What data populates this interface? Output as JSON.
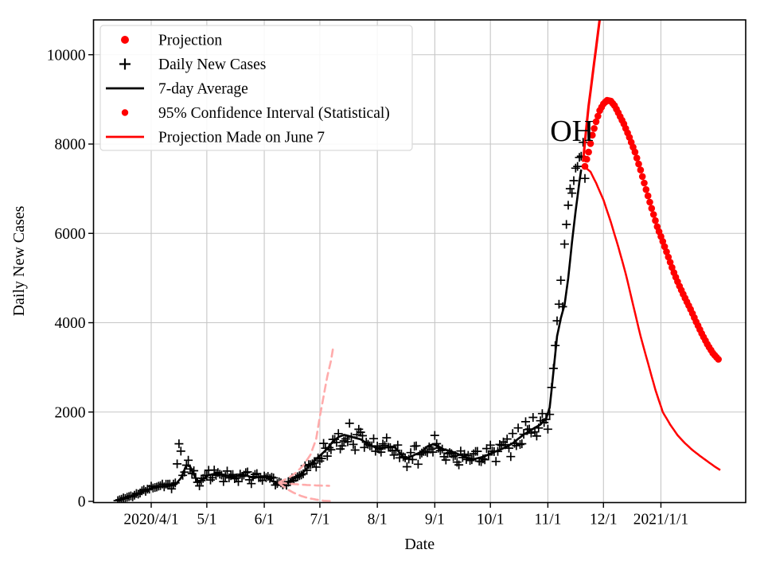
{
  "figure": {
    "background": "#ffffff"
  },
  "annotation": {
    "text": "OH",
    "date": "2020-11-14",
    "value": 8300
  },
  "legend": {
    "position": "upper left",
    "entries": [
      {
        "label": "Projection",
        "marker": "dot",
        "color": "#ff0000"
      },
      {
        "label": "Daily New Cases",
        "marker": "plus",
        "color": "#000000"
      },
      {
        "label": "7-day Average",
        "marker": "line",
        "color": "#000000"
      },
      {
        "label": "95% Confidence Interval (Statistical)",
        "marker": "dot_small",
        "color": "#ff0000"
      },
      {
        "label": "Projection Made on June 7",
        "marker": "line",
        "color": "#ff0000"
      }
    ]
  },
  "chart_data": {
    "type": "line",
    "title": "",
    "xlabel": "Date",
    "ylabel": "Daily New Cases",
    "x_range": [
      "2020-03-01",
      "2021-02-16"
    ],
    "ylim": [
      0,
      10762
    ],
    "grid": true,
    "x_ticks": [
      {
        "date": "2020-04-01",
        "label": "2020/4/1"
      },
      {
        "date": "2020-05-01",
        "label": "5/1"
      },
      {
        "date": "2020-06-01",
        "label": "6/1"
      },
      {
        "date": "2020-07-01",
        "label": "7/1"
      },
      {
        "date": "2020-08-01",
        "label": "8/1"
      },
      {
        "date": "2020-09-01",
        "label": "9/1"
      },
      {
        "date": "2020-10-01",
        "label": "10/1"
      },
      {
        "date": "2020-11-01",
        "label": "11/1"
      },
      {
        "date": "2020-12-01",
        "label": "12/1"
      },
      {
        "date": "2021-01-01",
        "label": "2021/1/1"
      }
    ],
    "y_ticks": [
      0,
      2000,
      4000,
      6000,
      8000,
      10000
    ],
    "series": [
      {
        "name": "Daily New Cases",
        "role": "scatter-plus",
        "color": "#000000",
        "start": "2020-03-14",
        "end": "2020-11-21",
        "jitter": 0.15,
        "seed": 97,
        "base_anchors": "7-day Average",
        "outliers": [
          [
            "2020-04-15",
            840
          ],
          [
            "2020-04-16",
            1290
          ],
          [
            "2020-04-17",
            1125
          ],
          [
            "2020-11-08",
            4950
          ],
          [
            "2020-11-10",
            5760
          ],
          [
            "2020-11-11",
            6200
          ],
          [
            "2020-11-12",
            6630
          ],
          [
            "2020-11-13",
            7000
          ],
          [
            "2020-11-14",
            6900
          ],
          [
            "2020-11-15",
            7180
          ],
          [
            "2020-11-16",
            7460
          ],
          [
            "2020-11-17",
            7500
          ],
          [
            "2020-11-18",
            7700
          ],
          [
            "2020-11-19",
            7730
          ],
          [
            "2020-11-20",
            8040
          ],
          [
            "2020-11-21",
            7230
          ]
        ]
      },
      {
        "name": "7-day Average",
        "role": "avg-line",
        "color": "#000000",
        "points": [
          [
            "2020-03-14",
            30
          ],
          [
            "2020-03-18",
            75
          ],
          [
            "2020-03-22",
            130
          ],
          [
            "2020-03-26",
            190
          ],
          [
            "2020-03-30",
            255
          ],
          [
            "2020-04-03",
            320
          ],
          [
            "2020-04-07",
            345
          ],
          [
            "2020-04-11",
            350
          ],
          [
            "2020-04-14",
            370
          ],
          [
            "2020-04-17",
            520
          ],
          [
            "2020-04-20",
            810
          ],
          [
            "2020-04-22",
            780
          ],
          [
            "2020-04-24",
            600
          ],
          [
            "2020-04-26",
            430
          ],
          [
            "2020-04-29",
            500
          ],
          [
            "2020-05-02",
            590
          ],
          [
            "2020-05-06",
            620
          ],
          [
            "2020-05-10",
            595
          ],
          [
            "2020-05-14",
            545
          ],
          [
            "2020-05-18",
            570
          ],
          [
            "2020-05-22",
            590
          ],
          [
            "2020-05-26",
            520
          ],
          [
            "2020-05-29",
            545
          ],
          [
            "2020-06-02",
            565
          ],
          [
            "2020-06-05",
            455
          ],
          [
            "2020-06-08",
            420
          ],
          [
            "2020-06-11",
            395
          ],
          [
            "2020-06-14",
            440
          ],
          [
            "2020-06-17",
            505
          ],
          [
            "2020-06-20",
            585
          ],
          [
            "2020-06-23",
            690
          ],
          [
            "2020-06-26",
            830
          ],
          [
            "2020-06-29",
            950
          ],
          [
            "2020-07-02",
            1060
          ],
          [
            "2020-07-05",
            1180
          ],
          [
            "2020-07-08",
            1340
          ],
          [
            "2020-07-11",
            1440
          ],
          [
            "2020-07-14",
            1490
          ],
          [
            "2020-07-17",
            1460
          ],
          [
            "2020-07-20",
            1420
          ],
          [
            "2020-07-23",
            1390
          ],
          [
            "2020-07-26",
            1310
          ],
          [
            "2020-07-29",
            1240
          ],
          [
            "2020-08-01",
            1190
          ],
          [
            "2020-08-04",
            1200
          ],
          [
            "2020-08-07",
            1215
          ],
          [
            "2020-08-10",
            1230
          ],
          [
            "2020-08-13",
            1090
          ],
          [
            "2020-08-16",
            945
          ],
          [
            "2020-08-19",
            1000
          ],
          [
            "2020-08-22",
            1060
          ],
          [
            "2020-08-25",
            1110
          ],
          [
            "2020-08-28",
            1230
          ],
          [
            "2020-08-31",
            1280
          ],
          [
            "2020-09-03",
            1230
          ],
          [
            "2020-09-06",
            1160
          ],
          [
            "2020-09-10",
            1120
          ],
          [
            "2020-09-13",
            1070
          ],
          [
            "2020-09-16",
            1020
          ],
          [
            "2020-09-19",
            965
          ],
          [
            "2020-09-22",
            945
          ],
          [
            "2020-09-25",
            975
          ],
          [
            "2020-09-28",
            1010
          ],
          [
            "2020-10-01",
            1070
          ],
          [
            "2020-10-04",
            1120
          ],
          [
            "2020-10-07",
            1170
          ],
          [
            "2020-10-10",
            1230
          ],
          [
            "2020-10-13",
            1300
          ],
          [
            "2020-10-16",
            1400
          ],
          [
            "2020-10-19",
            1500
          ],
          [
            "2020-10-22",
            1570
          ],
          [
            "2020-10-25",
            1650
          ],
          [
            "2020-10-28",
            1720
          ],
          [
            "2020-10-31",
            1850
          ],
          [
            "2020-11-02",
            2100
          ],
          [
            "2020-11-04",
            2900
          ],
          [
            "2020-11-06",
            3700
          ],
          [
            "2020-11-08",
            4100
          ],
          [
            "2020-11-10",
            4400
          ],
          [
            "2020-11-12",
            5000
          ],
          [
            "2020-11-14",
            5800
          ],
          [
            "2020-11-16",
            6500
          ],
          [
            "2020-11-18",
            7150
          ],
          [
            "2020-11-19",
            7430
          ]
        ]
      },
      {
        "name": "Projection",
        "role": "proj-dots",
        "color": "#ff0000",
        "points": [
          [
            "2020-11-21",
            7500
          ],
          [
            "2020-11-23",
            7820
          ],
          [
            "2020-11-25",
            8200
          ],
          [
            "2020-11-27",
            8500
          ],
          [
            "2020-11-29",
            8750
          ],
          [
            "2020-12-01",
            8900
          ],
          [
            "2020-12-03",
            8980
          ],
          [
            "2020-12-05",
            8960
          ],
          [
            "2020-12-07",
            8860
          ],
          [
            "2020-12-09",
            8700
          ],
          [
            "2020-12-12",
            8450
          ],
          [
            "2020-12-15",
            8150
          ],
          [
            "2020-12-18",
            7820
          ],
          [
            "2020-12-21",
            7420
          ],
          [
            "2020-12-24",
            6980
          ],
          [
            "2020-12-27",
            6560
          ],
          [
            "2020-12-30",
            6150
          ],
          [
            "2021-01-02",
            5820
          ],
          [
            "2021-01-05",
            5470
          ],
          [
            "2021-01-08",
            5120
          ],
          [
            "2021-01-11",
            4820
          ],
          [
            "2021-01-14",
            4550
          ],
          [
            "2021-01-17",
            4300
          ],
          [
            "2021-01-20",
            4020
          ],
          [
            "2021-01-23",
            3760
          ],
          [
            "2021-01-26",
            3520
          ],
          [
            "2021-01-29",
            3320
          ],
          [
            "2021-02-01",
            3180
          ]
        ]
      },
      {
        "name": "Projection upper bound",
        "role": "red-line",
        "color": "#ff0000",
        "points": [
          [
            "2020-11-20",
            7600
          ],
          [
            "2020-11-21",
            8050
          ],
          [
            "2020-11-22",
            8450
          ],
          [
            "2020-11-23",
            8850
          ],
          [
            "2020-11-25",
            9500
          ],
          [
            "2020-11-27",
            10150
          ],
          [
            "2020-11-29",
            10800
          ],
          [
            "2020-12-01",
            11600
          ]
        ]
      },
      {
        "name": "Projection lower bound",
        "role": "red-line",
        "color": "#ff0000",
        "points": [
          [
            "2020-11-20",
            7560
          ],
          [
            "2020-11-22",
            7450
          ],
          [
            "2020-11-24",
            7380
          ],
          [
            "2020-11-27",
            7130
          ],
          [
            "2020-12-01",
            6750
          ],
          [
            "2020-12-05",
            6250
          ],
          [
            "2020-12-09",
            5700
          ],
          [
            "2020-12-13",
            5100
          ],
          [
            "2020-12-17",
            4400
          ],
          [
            "2020-12-21",
            3700
          ],
          [
            "2020-12-25",
            3100
          ],
          [
            "2020-12-29",
            2500
          ],
          [
            "2021-01-02",
            2000
          ],
          [
            "2021-01-06",
            1720
          ],
          [
            "2021-01-10",
            1480
          ],
          [
            "2021-01-14",
            1300
          ],
          [
            "2021-01-18",
            1150
          ],
          [
            "2021-01-22",
            1020
          ],
          [
            "2021-01-26",
            900
          ],
          [
            "2021-01-30",
            780
          ],
          [
            "2021-02-02",
            700
          ]
        ]
      },
      {
        "name": "June 7 CI upper",
        "role": "ci-dashed",
        "color": "#ffabab",
        "points": [
          [
            "2020-06-09",
            430
          ],
          [
            "2020-06-14",
            520
          ],
          [
            "2020-06-18",
            640
          ],
          [
            "2020-06-22",
            800
          ],
          [
            "2020-06-26",
            1050
          ],
          [
            "2020-06-29",
            1400
          ],
          [
            "2020-07-01",
            1900
          ],
          [
            "2020-07-03",
            2350
          ],
          [
            "2020-07-05",
            2800
          ],
          [
            "2020-07-07",
            3150
          ],
          [
            "2020-07-08",
            3400
          ]
        ]
      },
      {
        "name": "June 7 CI median",
        "role": "ci-dashed",
        "color": "#ffabab",
        "points": [
          [
            "2020-06-09",
            420
          ],
          [
            "2020-06-16",
            390
          ],
          [
            "2020-06-23",
            370
          ],
          [
            "2020-06-30",
            355
          ],
          [
            "2020-07-06",
            350
          ]
        ]
      },
      {
        "name": "June 7 CI lower",
        "role": "ci-dashed",
        "color": "#ffabab",
        "points": [
          [
            "2020-06-09",
            410
          ],
          [
            "2020-06-13",
            280
          ],
          [
            "2020-06-17",
            190
          ],
          [
            "2020-06-21",
            120
          ],
          [
            "2020-06-25",
            70
          ],
          [
            "2020-06-29",
            40
          ],
          [
            "2020-07-03",
            15
          ],
          [
            "2020-07-08",
            5
          ]
        ]
      }
    ]
  }
}
